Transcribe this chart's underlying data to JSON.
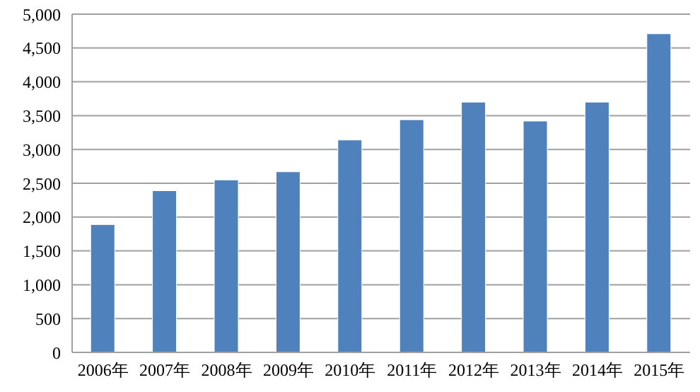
{
  "chart_data": {
    "type": "bar",
    "categories": [
      "2006年",
      "2007年",
      "2008年",
      "2009年",
      "2010年",
      "2011年",
      "2012年",
      "2013年",
      "2014年",
      "2015年"
    ],
    "values": [
      1890,
      2390,
      2550,
      2670,
      3140,
      3440,
      3700,
      3420,
      3700,
      4710
    ],
    "color": "#4f81bd",
    "ylim": [
      0,
      5000
    ],
    "yticks": [
      0,
      500,
      {
        "value": 1000,
        "label": "1,000"
      },
      {
        "value": 1500,
        "label": "1,500"
      },
      {
        "value": 2000,
        "label": "2,000"
      },
      {
        "value": 2500,
        "label": "2,500"
      },
      {
        "value": 3000,
        "label": "3,000"
      },
      {
        "value": 3500,
        "label": "3,500"
      },
      {
        "value": 4000,
        "label": "4,000"
      },
      {
        "value": 4500,
        "label": "4,500"
      },
      {
        "value": 5000,
        "label": "5,000"
      }
    ],
    "grid": "y"
  }
}
